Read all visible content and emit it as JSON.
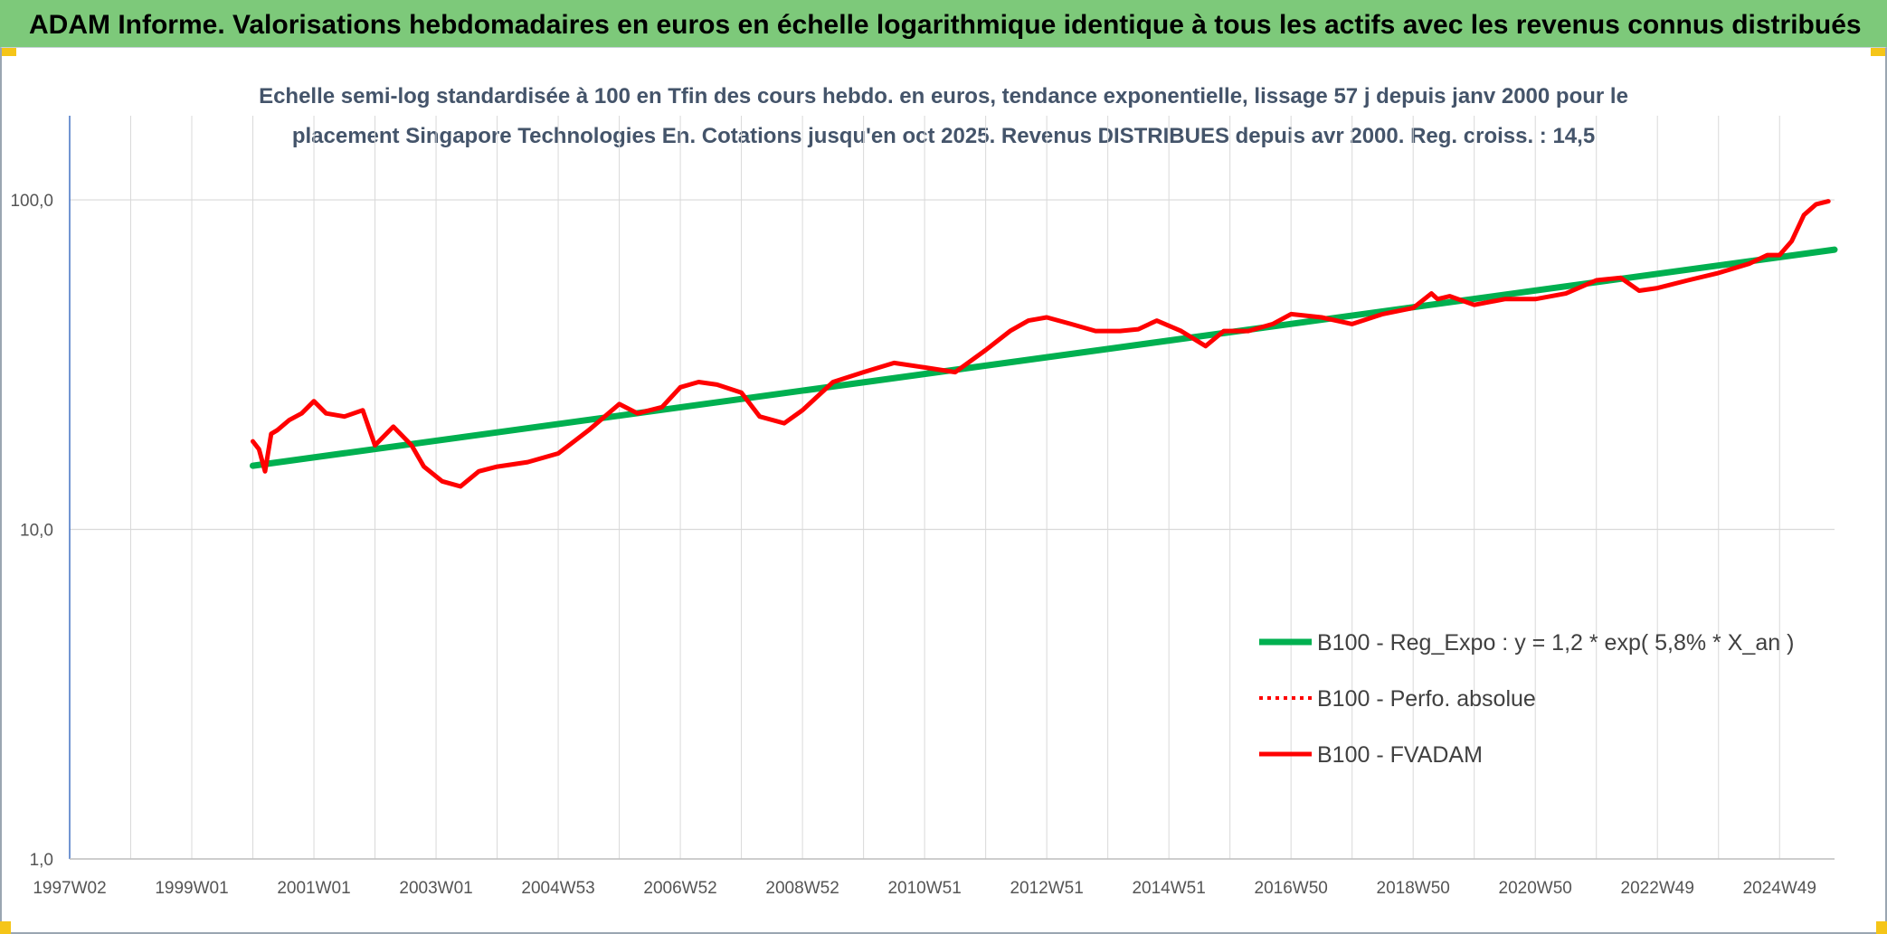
{
  "banner": {
    "title": "ADAM Informe. Valorisations hebdomadaires en euros en échelle logarithmique identique à tous les actifs avec les revenus connus distribués"
  },
  "colors": {
    "banner_bg": "#7dc97a",
    "trend": "#00b050",
    "series": "#ff0000",
    "grid": "#d9d9d9",
    "axis": "#4472c4",
    "accent_corner": "#f5c518"
  },
  "chart_data": {
    "type": "line",
    "title": "",
    "subtitle_lines": [
      "Echelle semi-log standardisée à 100 en Tfin des cours hebdo. en euros, tendance exponentielle, lissage 57 j depuis janv 2000 pour le",
      "placement Singapore Technologies En. Cotations jusqu'en oct 2025. Revenus DISTRIBUES depuis avr 2000. Reg. croiss. : 14,5"
    ],
    "xlabel": "",
    "ylabel": "",
    "y_scale": "log",
    "ylim": [
      1,
      180
    ],
    "y_ticks": [
      1,
      10,
      100
    ],
    "y_tick_labels": [
      "1,0",
      "10,0",
      "100,0"
    ],
    "xlim": [
      1997.0,
      2025.9
    ],
    "x_ticks": [
      1997.0,
      1999.0,
      2001.0,
      2003.0,
      2005.0,
      2007.0,
      2009.0,
      2011.0,
      2013.0,
      2015.0,
      2017.0,
      2019.0,
      2021.0,
      2023.0,
      2025.0
    ],
    "x_tick_labels": [
      "1997W02",
      "1999W01",
      "2001W01",
      "2003W01",
      "2004W53",
      "2006W52",
      "2008W52",
      "2010W51",
      "2012W51",
      "2014W51",
      "2016W50",
      "2018W50",
      "2020W50",
      "2022W49",
      "2024W49"
    ],
    "grid": "vertical and horizontal",
    "legend_position": "bottom-right",
    "series": [
      {
        "name": "B100 - Reg_Expo : y = 1,2 * exp( 5,8% *  X_an )",
        "style": "solid-thick",
        "color": "#00b050",
        "x": [
          2000.0,
          2025.9
        ],
        "y": [
          15.6,
          70.6
        ]
      },
      {
        "name": "B100 - Perfo. absolue",
        "style": "dotted",
        "color": "#ff0000",
        "x": [],
        "y": []
      },
      {
        "name": "B100 - FVADAM",
        "style": "solid",
        "color": "#ff0000",
        "x": [
          2000.0,
          2000.1,
          2000.2,
          2000.3,
          2000.4,
          2000.6,
          2000.8,
          2001.0,
          2001.2,
          2001.5,
          2001.8,
          2002.0,
          2002.3,
          2002.6,
          2002.8,
          2003.1,
          2003.4,
          2003.7,
          2004.0,
          2004.5,
          2005.0,
          2005.5,
          2006.0,
          2006.3,
          2006.7,
          2007.0,
          2007.3,
          2007.6,
          2008.0,
          2008.3,
          2008.7,
          2009.0,
          2009.5,
          2010.0,
          2010.5,
          2011.0,
          2011.5,
          2012.0,
          2012.4,
          2012.7,
          2013.0,
          2013.4,
          2013.8,
          2014.2,
          2014.5,
          2014.8,
          2015.2,
          2015.6,
          2015.9,
          2016.3,
          2016.7,
          2017.0,
          2017.5,
          2018.0,
          2018.5,
          2019.0,
          2019.3,
          2019.4,
          2019.6,
          2020.0,
          2020.5,
          2021.0,
          2021.5,
          2022.0,
          2022.4,
          2022.7,
          2023.0,
          2023.5,
          2024.0,
          2024.5,
          2024.8,
          2025.0,
          2025.2,
          2025.4,
          2025.6,
          2025.8
        ],
        "y": [
          18.5,
          17.5,
          15.0,
          19.5,
          20.0,
          21.5,
          22.5,
          24.5,
          22.5,
          22.0,
          23.0,
          18.0,
          20.5,
          18.0,
          15.5,
          14.0,
          13.5,
          15.0,
          15.5,
          16.0,
          17.0,
          20.0,
          24.0,
          22.5,
          23.5,
          27.0,
          28.0,
          27.5,
          26.0,
          22.0,
          21.0,
          23.0,
          28.0,
          30.0,
          32.0,
          31.0,
          30.0,
          35.0,
          40.0,
          43.0,
          44.0,
          42.0,
          40.0,
          40.0,
          40.5,
          43.0,
          40.0,
          36.0,
          40.0,
          40.0,
          42.0,
          45.0,
          44.0,
          42.0,
          45.0,
          47.0,
          52.0,
          50.0,
          51.0,
          48.0,
          50.0,
          50.0,
          52.0,
          57.0,
          58.0,
          53.0,
          54.0,
          57.0,
          60.0,
          64.0,
          68.0,
          68.0,
          75.0,
          90.0,
          97.0,
          99.0
        ]
      }
    ]
  }
}
